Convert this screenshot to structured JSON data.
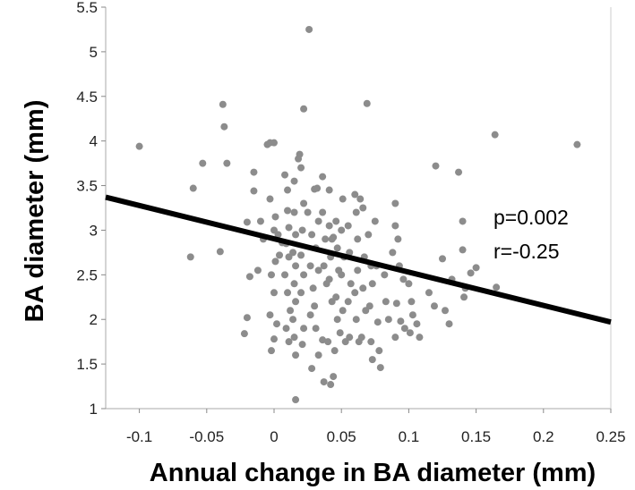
{
  "chart_data": {
    "type": "scatter",
    "xlabel": "Annual change in BA diameter (mm)",
    "ylabel": "BA diameter (mm)",
    "xlim": [
      -0.125,
      0.25
    ],
    "ylim": [
      1,
      5.5
    ],
    "xticks": [
      -0.1,
      -0.05,
      0,
      0.05,
      0.1,
      0.15,
      0.2,
      0.25
    ],
    "xtick_labels": [
      "-0.1",
      "-0.05",
      "0",
      "0.05",
      "0.1",
      "0.15",
      "0.2",
      "0.25"
    ],
    "yticks": [
      1,
      1.5,
      2,
      2.5,
      3,
      3.5,
      4,
      4.5,
      5,
      5.5
    ],
    "ytick_labels": [
      "1",
      "1.5",
      "2",
      "2.5",
      "3",
      "3.5",
      "4",
      "4.5",
      "5",
      "5.5"
    ],
    "annotations": [
      "p=0.002",
      "r=-0.25"
    ],
    "regression_line": {
      "x": [
        -0.125,
        0.25
      ],
      "y": [
        3.37,
        1.97
      ]
    },
    "grid": false,
    "colors": {
      "points": "#8c8c8c",
      "line": "#000000"
    },
    "points": [
      [
        -0.1,
        3.94
      ],
      [
        -0.06,
        3.47
      ],
      [
        -0.053,
        3.75
      ],
      [
        -0.062,
        2.7
      ],
      [
        -0.04,
        2.76
      ],
      [
        -0.038,
        4.41
      ],
      [
        -0.037,
        4.16
      ],
      [
        -0.035,
        3.75
      ],
      [
        -0.02,
        3.09
      ],
      [
        -0.015,
        3.65
      ],
      [
        -0.015,
        3.44
      ],
      [
        -0.01,
        3.1
      ],
      [
        -0.008,
        2.9
      ],
      [
        -0.012,
        2.55
      ],
      [
        -0.018,
        2.48
      ],
      [
        -0.02,
        2.02
      ],
      [
        -0.022,
        1.84
      ],
      [
        -0.005,
        3.96
      ],
      [
        -0.003,
        3.98
      ],
      [
        0.0,
        3.98
      ],
      [
        -0.003,
        3.35
      ],
      [
        0.001,
        3.15
      ],
      [
        0.0,
        3.0
      ],
      [
        0.003,
        2.95
      ],
      [
        0.006,
        2.86
      ],
      [
        0.004,
        2.72
      ],
      [
        0.001,
        2.65
      ],
      [
        -0.002,
        2.5
      ],
      [
        0.0,
        2.3
      ],
      [
        -0.003,
        2.05
      ],
      [
        0.002,
        1.95
      ],
      [
        0.0,
        1.78
      ],
      [
        -0.002,
        1.65
      ],
      [
        0.008,
        3.62
      ],
      [
        0.01,
        3.45
      ],
      [
        0.01,
        3.22
      ],
      [
        0.011,
        3.03
      ],
      [
        0.009,
        2.85
      ],
      [
        0.011,
        2.7
      ],
      [
        0.008,
        2.5
      ],
      [
        0.01,
        2.3
      ],
      [
        0.012,
        2.1
      ],
      [
        0.009,
        1.9
      ],
      [
        0.011,
        1.75
      ],
      [
        0.015,
        3.55
      ],
      [
        0.015,
        3.2
      ],
      [
        0.016,
        2.95
      ],
      [
        0.014,
        2.75
      ],
      [
        0.016,
        2.6
      ],
      [
        0.015,
        2.4
      ],
      [
        0.016,
        2.2
      ],
      [
        0.014,
        2.0
      ],
      [
        0.015,
        1.8
      ],
      [
        0.016,
        1.6
      ],
      [
        0.016,
        1.1
      ],
      [
        0.018,
        3.8
      ],
      [
        0.019,
        3.85
      ],
      [
        0.02,
        3.7
      ],
      [
        0.022,
        4.36
      ],
      [
        0.022,
        3.3
      ],
      [
        0.021,
        3.0
      ],
      [
        0.02,
        2.72
      ],
      [
        0.022,
        2.5
      ],
      [
        0.02,
        2.3
      ],
      [
        0.022,
        1.9
      ],
      [
        0.021,
        1.72
      ],
      [
        0.026,
        5.25
      ],
      [
        0.025,
        3.2
      ],
      [
        0.028,
        2.95
      ],
      [
        0.027,
        2.6
      ],
      [
        0.029,
        2.35
      ],
      [
        0.027,
        2.05
      ],
      [
        0.028,
        1.45
      ],
      [
        0.03,
        3.46
      ],
      [
        0.032,
        3.47
      ],
      [
        0.033,
        3.1
      ],
      [
        0.031,
        2.8
      ],
      [
        0.033,
        2.55
      ],
      [
        0.03,
        2.15
      ],
      [
        0.031,
        1.9
      ],
      [
        0.033,
        1.6
      ],
      [
        0.036,
        3.6
      ],
      [
        0.036,
        3.2
      ],
      [
        0.038,
        2.9
      ],
      [
        0.037,
        2.6
      ],
      [
        0.039,
        2.4
      ],
      [
        0.037,
        1.3
      ],
      [
        0.036,
        1.77
      ],
      [
        0.041,
        3.45
      ],
      [
        0.041,
        3.05
      ],
      [
        0.043,
        2.9
      ],
      [
        0.042,
        2.7
      ],
      [
        0.041,
        2.45
      ],
      [
        0.043,
        2.2
      ],
      [
        0.04,
        1.75
      ],
      [
        0.042,
        1.27
      ],
      [
        0.046,
        3.1
      ],
      [
        0.047,
        2.8
      ],
      [
        0.048,
        2.55
      ],
      [
        0.046,
        2.25
      ],
      [
        0.047,
        2.0
      ],
      [
        0.045,
        1.65
      ],
      [
        0.044,
        1.36
      ],
      [
        0.051,
        3.35
      ],
      [
        0.05,
        3.0
      ],
      [
        0.052,
        2.7
      ],
      [
        0.05,
        2.5
      ],
      [
        0.051,
        2.1
      ],
      [
        0.049,
        1.85
      ],
      [
        0.053,
        1.75
      ],
      [
        0.055,
        3.05
      ],
      [
        0.056,
        2.75
      ],
      [
        0.057,
        2.4
      ],
      [
        0.055,
        2.2
      ],
      [
        0.056,
        1.8
      ],
      [
        0.06,
        3.4
      ],
      [
        0.061,
        3.2
      ],
      [
        0.062,
        2.9
      ],
      [
        0.062,
        2.55
      ],
      [
        0.06,
        2.3
      ],
      [
        0.061,
        2.0
      ],
      [
        0.063,
        1.75
      ],
      [
        0.064,
        3.35
      ],
      [
        0.066,
        3.25
      ],
      [
        0.067,
        2.7
      ],
      [
        0.066,
        2.35
      ],
      [
        0.068,
        2.1
      ],
      [
        0.065,
        1.8
      ],
      [
        0.069,
        4.42
      ],
      [
        0.07,
        2.95
      ],
      [
        0.072,
        2.6
      ],
      [
        0.073,
        2.4
      ],
      [
        0.071,
        2.15
      ],
      [
        0.072,
        1.75
      ],
      [
        0.073,
        1.55
      ],
      [
        0.075,
        3.1
      ],
      [
        0.076,
        2.6
      ],
      [
        0.077,
        1.97
      ],
      [
        0.078,
        1.65
      ],
      [
        0.079,
        1.46
      ],
      [
        0.082,
        2.5
      ],
      [
        0.083,
        2.2
      ],
      [
        0.085,
        2.0
      ],
      [
        0.088,
        2.75
      ],
      [
        0.09,
        3.3
      ],
      [
        0.09,
        3.05
      ],
      [
        0.092,
        2.9
      ],
      [
        0.093,
        2.6
      ],
      [
        0.091,
        2.18
      ],
      [
        0.094,
        1.98
      ],
      [
        0.09,
        1.8
      ],
      [
        0.096,
        2.45
      ],
      [
        0.097,
        1.9
      ],
      [
        0.1,
        2.4
      ],
      [
        0.102,
        2.2
      ],
      [
        0.103,
        2.05
      ],
      [
        0.101,
        1.85
      ],
      [
        0.106,
        1.95
      ],
      [
        0.108,
        1.8
      ],
      [
        0.115,
        2.3
      ],
      [
        0.12,
        3.72
      ],
      [
        0.119,
        2.15
      ],
      [
        0.125,
        2.68
      ],
      [
        0.127,
        2.1
      ],
      [
        0.13,
        1.95
      ],
      [
        0.132,
        2.45
      ],
      [
        0.137,
        3.65
      ],
      [
        0.14,
        3.1
      ],
      [
        0.142,
        2.35
      ],
      [
        0.141,
        2.25
      ],
      [
        0.14,
        2.78
      ],
      [
        0.146,
        2.52
      ],
      [
        0.15,
        2.58
      ],
      [
        0.164,
        4.07
      ],
      [
        0.165,
        2.36
      ],
      [
        0.225,
        3.96
      ],
      [
        0.044,
        2.92
      ]
    ]
  }
}
